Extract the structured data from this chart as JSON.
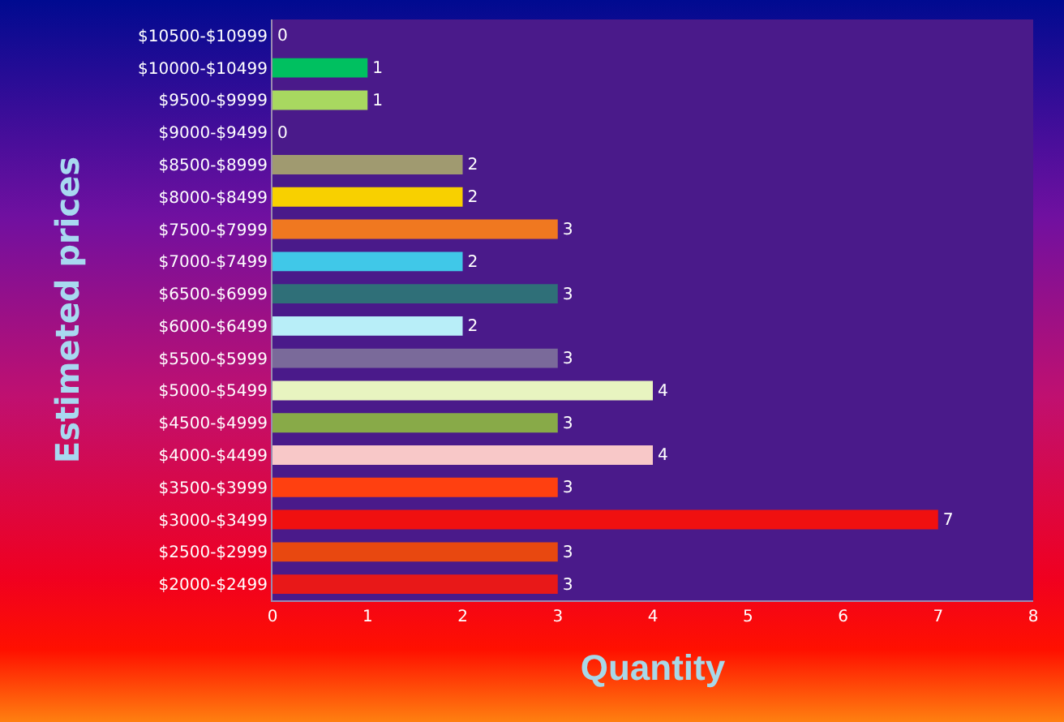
{
  "chart_data": {
    "type": "bar",
    "orientation": "horizontal",
    "xlabel": "Quantity",
    "ylabel": "Estimeted prices",
    "categories": [
      "$10500-$10999",
      "$10000-$10499",
      "$9500-$9999",
      "$9000-$9499",
      "$8500-$8999",
      "$8000-$8499",
      "$7500-$7999",
      "$7000-$7499",
      "$6500-$6999",
      "$6000-$6499",
      "$5500-$5999",
      "$5000-$5499",
      "$4500-$4999",
      "$4000-$4499",
      "$3500-$3999",
      "$3000-$3499",
      "$2500-$2999",
      "$2000-$2499"
    ],
    "values": [
      0,
      1,
      1,
      0,
      2,
      2,
      3,
      2,
      3,
      2,
      3,
      4,
      3,
      4,
      3,
      7,
      3,
      3
    ],
    "colors": [
      "#00b050",
      "#00c060",
      "#a8d860",
      "#a8d860",
      "#a09a70",
      "#f8d000",
      "#f07820",
      "#40c8e8",
      "#2f6f78",
      "#b8eef8",
      "#7a6a9a",
      "#e8f4c0",
      "#88aa48",
      "#f8c8c8",
      "#ff4010",
      "#f01010",
      "#e84810",
      "#e81818"
    ],
    "xlim": [
      0,
      8
    ],
    "xticks": [
      0,
      1,
      2,
      3,
      4,
      5,
      6,
      7,
      8
    ],
    "data_labels": true,
    "grid": false
  }
}
